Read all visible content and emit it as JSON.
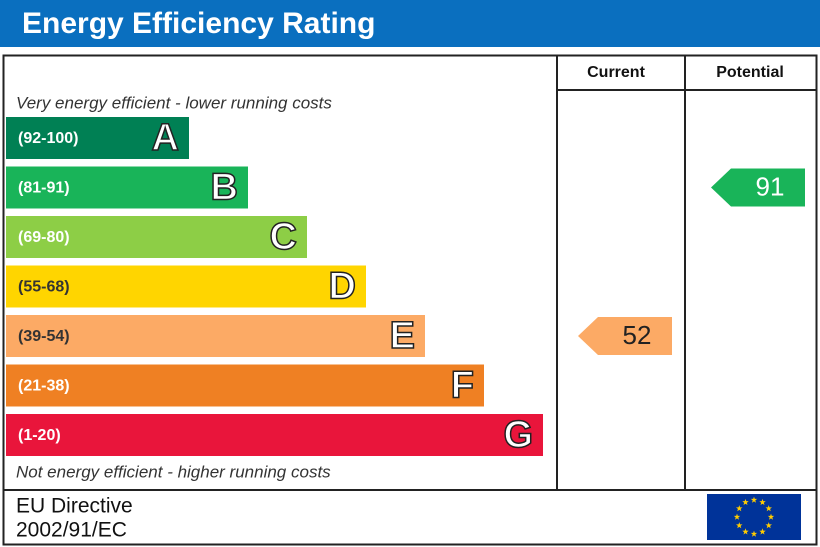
{
  "title": "Energy Efficiency Rating",
  "columns": [
    "Current",
    "Potential"
  ],
  "top_note": "Very energy efficient - lower running costs",
  "bottom_note": "Not energy efficient - higher running costs",
  "bands": [
    {
      "range": "(92-100)",
      "letter": "A",
      "color": "#008054"
    },
    {
      "range": "(81-91)",
      "letter": "B",
      "color": "#19b459"
    },
    {
      "range": "(69-80)",
      "letter": "C",
      "color": "#8dce46"
    },
    {
      "range": "(55-68)",
      "letter": "D",
      "color": "#ffd500"
    },
    {
      "range": "(39-54)",
      "letter": "E",
      "color": "#fcaa65"
    },
    {
      "range": "(21-38)",
      "letter": "F",
      "color": "#ef8023"
    },
    {
      "range": "(1-20)",
      "letter": "G",
      "color": "#e9153b"
    }
  ],
  "current": 52,
  "potential": 91,
  "footer": [
    "EU Directive",
    "2002/91/EC"
  ]
}
